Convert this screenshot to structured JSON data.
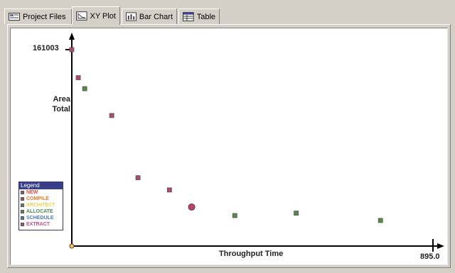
{
  "tabs": [
    {
      "label": "Project Files",
      "icon": "project-files-icon",
      "active": false
    },
    {
      "label": "XY Plot",
      "icon": "xy-plot-icon",
      "active": true
    },
    {
      "label": "Bar Chart",
      "icon": "bar-chart-icon",
      "active": false
    },
    {
      "label": "Table",
      "icon": "table-icon",
      "active": false
    }
  ],
  "legend": {
    "title": "Legend",
    "items": [
      {
        "label": "NEW",
        "color": "#e0453a",
        "swatch": "#b04a6a"
      },
      {
        "label": "COMPILE",
        "color": "#e8782a",
        "swatch": "#b04a6a"
      },
      {
        "label": "ARCHITECT",
        "color": "#e8d050",
        "swatch": "#5a8a4a"
      },
      {
        "label": "ALLOCATE",
        "color": "#4a8a4a",
        "swatch": "#5a8a4a"
      },
      {
        "label": "SCHEDULE",
        "color": "#4a78c8",
        "swatch": "#4a78c8"
      },
      {
        "label": "EXTRACT",
        "color": "#d04a8a",
        "swatch": "#b04a6a"
      }
    ]
  },
  "chart_data": {
    "type": "scatter",
    "xlabel": "Throughput Time",
    "ylabel": "Area\nTotal",
    "xlim": [
      0,
      895.0
    ],
    "ylim": [
      0,
      161003
    ],
    "y_tick_label": "161003",
    "x_tick_label": "895.0",
    "points": [
      {
        "x": 0,
        "y": 161003,
        "color": "#b04a6a",
        "shape": "square"
      },
      {
        "x": 16,
        "y": 138000,
        "color": "#b04a6a",
        "shape": "square"
      },
      {
        "x": 32,
        "y": 129000,
        "color": "#5a8a4a",
        "shape": "square"
      },
      {
        "x": 99,
        "y": 107000,
        "color": "#b04a6a",
        "shape": "square"
      },
      {
        "x": 164,
        "y": 56000,
        "color": "#b04a6a",
        "shape": "square"
      },
      {
        "x": 242,
        "y": 46000,
        "color": "#b04a6a",
        "shape": "square"
      },
      {
        "x": 297,
        "y": 32000,
        "color": "#b04a6a",
        "shape": "circle"
      },
      {
        "x": 404,
        "y": 25000,
        "color": "#5a8a4a",
        "shape": "square"
      },
      {
        "x": 556,
        "y": 27000,
        "color": "#5a8a4a",
        "shape": "square"
      },
      {
        "x": 765,
        "y": 21000,
        "color": "#5a8a4a",
        "shape": "square"
      },
      {
        "x": 0,
        "y": 0,
        "color": "#e8d050",
        "shape": "circle"
      }
    ]
  }
}
